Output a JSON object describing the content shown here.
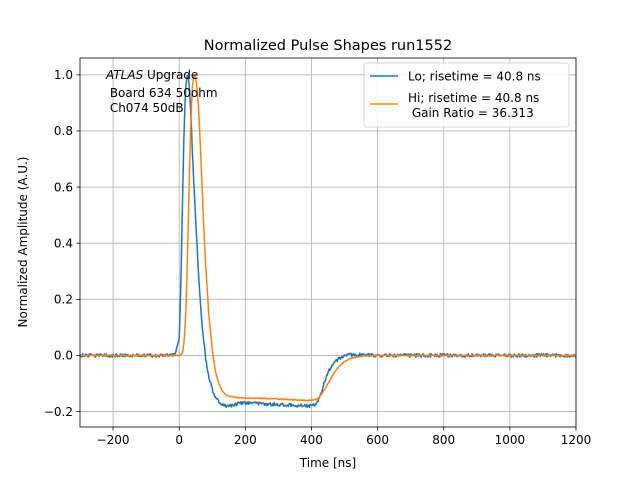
{
  "chart_data": {
    "type": "line",
    "title": "Normalized Pulse Shapes run1552",
    "xlabel": "Time [ns]",
    "ylabel": "Normalized Amplitude (A.U.)",
    "xlim": [
      -300,
      1200
    ],
    "ylim": [
      -0.255,
      1.06
    ],
    "xticks": [
      -200,
      0,
      200,
      400,
      600,
      800,
      1000,
      1200
    ],
    "xtick_labels": [
      "−200",
      "0",
      "200",
      "400",
      "600",
      "800",
      "1000",
      "1200"
    ],
    "yticks": [
      -0.2,
      0.0,
      0.2,
      0.4,
      0.6,
      0.8,
      1.0
    ],
    "ytick_labels": [
      "−0.2",
      "0.0",
      "0.2",
      "0.4",
      "0.6",
      "0.8",
      "1.0"
    ],
    "grid": true,
    "legend_position": "top-right",
    "annotation": {
      "experiment": "ATLAS",
      "line1_rest": " Upgrade",
      "line2": " Board 634 50ohm",
      "line3": " Ch074 50dB"
    },
    "series": [
      {
        "name": "Lo; risetime = 40.8 ns",
        "color": "#1f77b4",
        "noise": 0.006,
        "x": [
          -300,
          -20,
          -10,
          0,
          5,
          10,
          15,
          20,
          25,
          30,
          35,
          40,
          50,
          60,
          70,
          80,
          90,
          100,
          110,
          120,
          130,
          140,
          150,
          160,
          170,
          180,
          200,
          250,
          300,
          350,
          380,
          400,
          410,
          420,
          430,
          440,
          450,
          460,
          470,
          480,
          490,
          500,
          520,
          550,
          600,
          700,
          800,
          900,
          1000,
          1100,
          1200
        ],
        "y": [
          0.0,
          0.0,
          0.01,
          0.06,
          0.25,
          0.55,
          0.82,
          0.96,
          1.0,
          0.97,
          0.87,
          0.72,
          0.48,
          0.26,
          0.1,
          -0.01,
          -0.08,
          -0.12,
          -0.15,
          -0.165,
          -0.175,
          -0.18,
          -0.18,
          -0.178,
          -0.175,
          -0.17,
          -0.17,
          -0.172,
          -0.175,
          -0.178,
          -0.18,
          -0.18,
          -0.175,
          -0.16,
          -0.13,
          -0.09,
          -0.06,
          -0.04,
          -0.025,
          -0.015,
          -0.008,
          0.0,
          0.003,
          0.002,
          0.0,
          0.0,
          0.0,
          0.0,
          0.0,
          0.0,
          0.0
        ]
      },
      {
        "name": "Hi; risetime = 40.8 ns\n Gain Ratio = 36.313",
        "color": "#ff7f0e",
        "noise": 0.0015,
        "x": [
          -300,
          0,
          5,
          10,
          15,
          20,
          25,
          30,
          35,
          40,
          45,
          50,
          55,
          60,
          65,
          70,
          75,
          80,
          90,
          100,
          110,
          120,
          130,
          140,
          150,
          175,
          200,
          250,
          300,
          350,
          380,
          400,
          410,
          420,
          430,
          440,
          450,
          460,
          470,
          480,
          490,
          500,
          510,
          520,
          540,
          560,
          600,
          700,
          800,
          900,
          1000,
          1100,
          1200
        ],
        "y": [
          0.0,
          0.0,
          0.003,
          0.01,
          0.05,
          0.15,
          0.35,
          0.6,
          0.82,
          0.96,
          1.0,
          0.99,
          0.94,
          0.85,
          0.72,
          0.58,
          0.44,
          0.32,
          0.14,
          0.02,
          -0.06,
          -0.1,
          -0.125,
          -0.14,
          -0.145,
          -0.15,
          -0.152,
          -0.153,
          -0.155,
          -0.158,
          -0.16,
          -0.16,
          -0.158,
          -0.153,
          -0.14,
          -0.12,
          -0.1,
          -0.08,
          -0.06,
          -0.045,
          -0.032,
          -0.022,
          -0.015,
          -0.01,
          -0.005,
          -0.002,
          0.0,
          0.0,
          0.0,
          0.0,
          0.0,
          0.0,
          0.0
        ]
      }
    ]
  }
}
